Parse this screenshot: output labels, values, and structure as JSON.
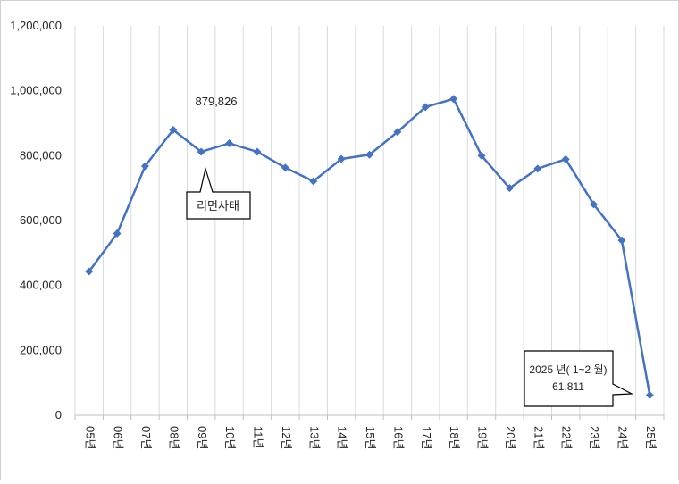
{
  "chart_data": {
    "type": "line",
    "title": "",
    "xlabel": "",
    "ylabel": "",
    "categories": [
      "05년",
      "06년",
      "07년",
      "08년",
      "09년",
      "10년",
      "11년",
      "12년",
      "13년",
      "14년",
      "15년",
      "16년",
      "17년",
      "18년",
      "19년",
      "20년",
      "21년",
      "22년",
      "23년",
      "24년",
      "25년"
    ],
    "series": [
      {
        "name": "",
        "values": [
          443000,
          560000,
          768000,
          879826,
          812000,
          838000,
          812000,
          763000,
          721000,
          790000,
          803000,
          873000,
          950000,
          975000,
          800000,
          700000,
          760000,
          789000,
          650000,
          539000,
          61811
        ]
      }
    ],
    "ylim": [
      0,
      1200000
    ],
    "yticks": [
      0,
      200000,
      400000,
      600000,
      800000,
      1000000,
      1200000
    ],
    "ytick_labels": [
      "0",
      "200,000",
      "400,000",
      "600,000",
      "800,000",
      "1,000,000",
      "1,200,000"
    ],
    "grid": "vertical",
    "line_color": "#4472c4",
    "annotations": {
      "peak_value": "879,826",
      "event_label": "리먼사태",
      "latest_line1": "2025 년( 1~2 월)",
      "latest_line2": "61,811"
    }
  }
}
